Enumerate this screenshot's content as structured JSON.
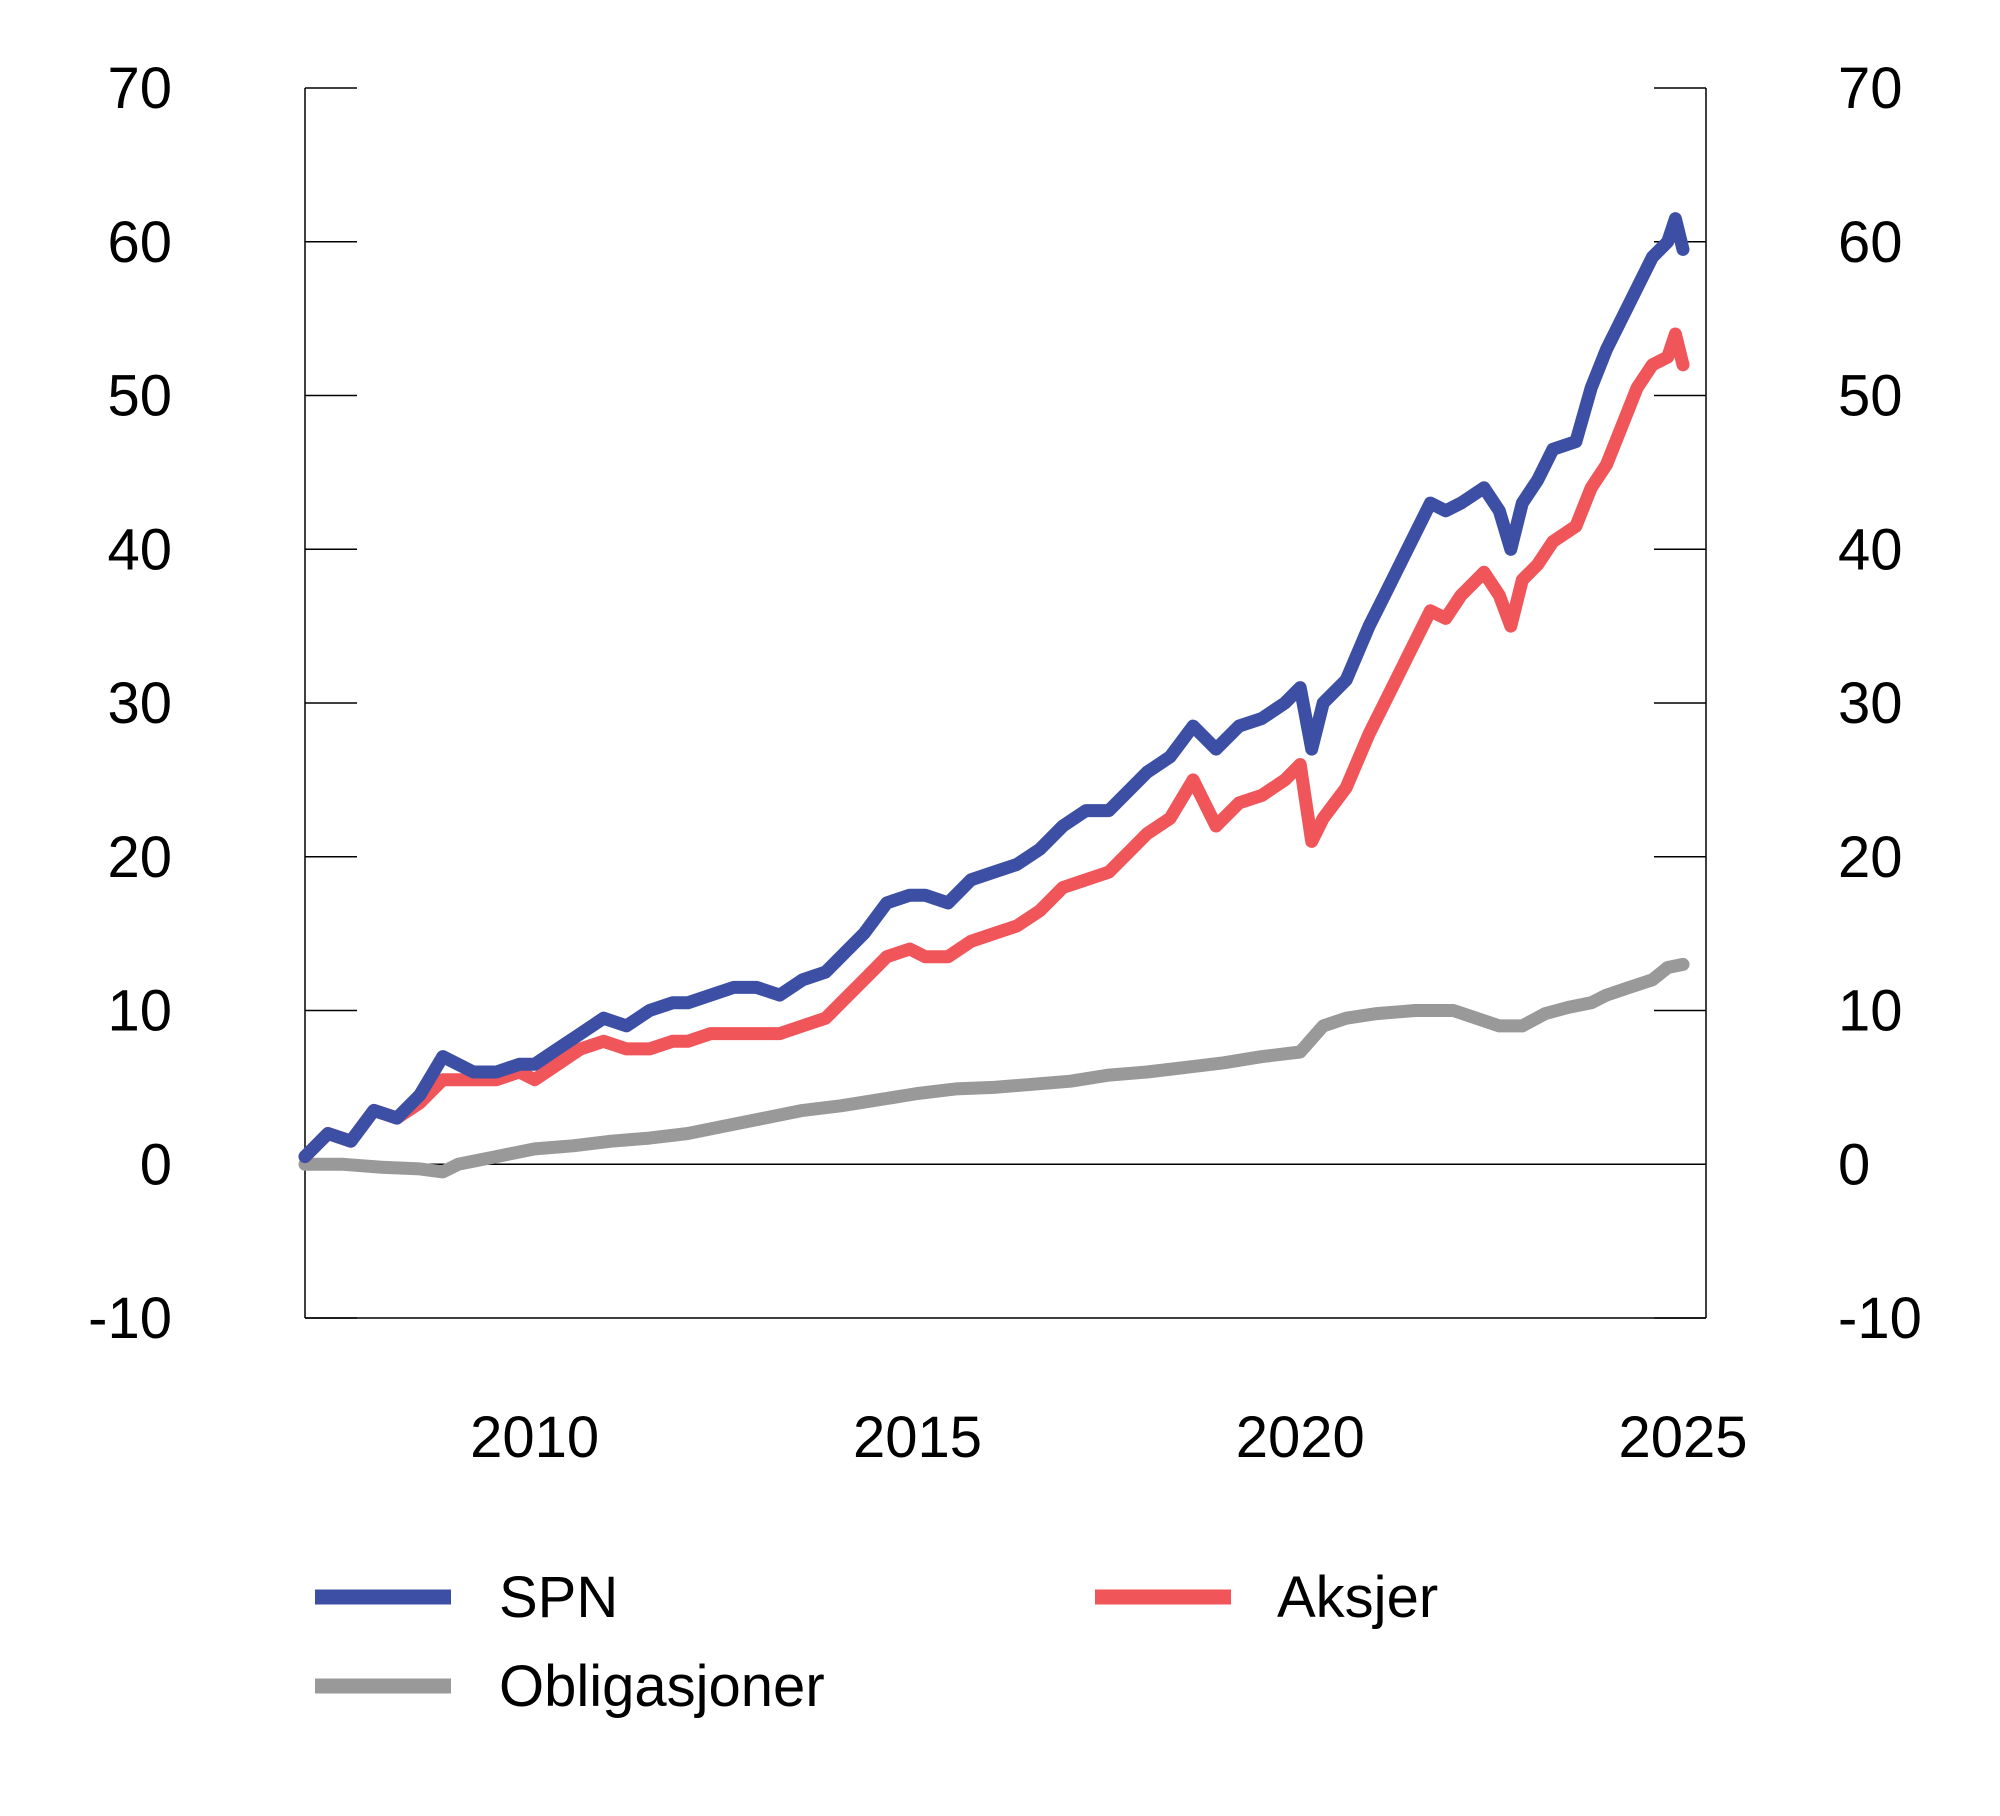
{
  "chart_data": {
    "type": "line",
    "title": "",
    "xlabel": "",
    "ylabel": "",
    "xlim": [
      2007.0,
      2025.3
    ],
    "ylim": [
      -10,
      70
    ],
    "x_ticks": [
      2010,
      2015,
      2020,
      2025
    ],
    "x_tick_labels": [
      "2010",
      "2015",
      "2020",
      "2025"
    ],
    "y_ticks": [
      -10,
      0,
      10,
      20,
      30,
      40,
      50,
      60,
      70
    ],
    "y_tick_labels": [
      "-10",
      "0",
      "10",
      "20",
      "30",
      "40",
      "50",
      "60",
      "70"
    ],
    "legend_position": "bottom",
    "grid": false,
    "series": [
      {
        "name": "SPN",
        "color": "#3c4fa4",
        "x": [
          2007.0,
          2007.3,
          2007.6,
          2007.9,
          2008.2,
          2008.5,
          2008.8,
          2009.0,
          2009.2,
          2009.5,
          2009.8,
          2010.0,
          2010.3,
          2010.6,
          2010.9,
          2011.2,
          2011.5,
          2011.8,
          2012.0,
          2012.3,
          2012.6,
          2012.9,
          2013.2,
          2013.5,
          2013.8,
          2014.0,
          2014.3,
          2014.6,
          2014.9,
          2015.1,
          2015.4,
          2015.7,
          2016.0,
          2016.3,
          2016.6,
          2016.9,
          2017.2,
          2017.5,
          2017.8,
          2018.0,
          2018.3,
          2018.6,
          2018.9,
          2019.2,
          2019.5,
          2019.8,
          2020.0,
          2020.15,
          2020.3,
          2020.6,
          2020.9,
          2021.1,
          2021.4,
          2021.7,
          2021.9,
          2022.1,
          2022.4,
          2022.6,
          2022.75,
          2022.9,
          2023.1,
          2023.3,
          2023.6,
          2023.8,
          2024.0,
          2024.2,
          2024.4,
          2024.6,
          2024.8,
          2024.9,
          2025.0
        ],
        "values": [
          0.5,
          2.0,
          1.5,
          3.5,
          3.0,
          4.5,
          7.0,
          6.5,
          6.0,
          6.0,
          6.5,
          6.5,
          7.5,
          8.5,
          9.5,
          9.0,
          10.0,
          10.5,
          10.5,
          11.0,
          11.5,
          11.5,
          11.0,
          12.0,
          12.5,
          13.5,
          15.0,
          17.0,
          17.5,
          17.5,
          17.0,
          18.5,
          19.0,
          19.5,
          20.5,
          22.0,
          23.0,
          23.0,
          24.5,
          25.5,
          26.5,
          28.5,
          27.0,
          28.5,
          29.0,
          30.0,
          31.0,
          27.0,
          30.0,
          31.5,
          35.0,
          37.0,
          40.0,
          43.0,
          42.5,
          43.0,
          44.0,
          42.5,
          40.0,
          43.0,
          44.5,
          46.5,
          47.0,
          50.5,
          53.0,
          55.0,
          57.0,
          59.0,
          60.0,
          61.5,
          59.5
        ]
      },
      {
        "name": "Aksjer",
        "color": "#f0555a",
        "x": [
          2007.0,
          2007.3,
          2007.6,
          2007.9,
          2008.2,
          2008.5,
          2008.8,
          2009.0,
          2009.2,
          2009.5,
          2009.8,
          2010.0,
          2010.3,
          2010.6,
          2010.9,
          2011.2,
          2011.5,
          2011.8,
          2012.0,
          2012.3,
          2012.6,
          2012.9,
          2013.2,
          2013.5,
          2013.8,
          2014.0,
          2014.3,
          2014.6,
          2014.9,
          2015.1,
          2015.4,
          2015.7,
          2016.0,
          2016.3,
          2016.6,
          2016.9,
          2017.2,
          2017.5,
          2017.8,
          2018.0,
          2018.3,
          2018.6,
          2018.9,
          2019.2,
          2019.5,
          2019.8,
          2020.0,
          2020.15,
          2020.3,
          2020.6,
          2020.9,
          2021.1,
          2021.4,
          2021.7,
          2021.9,
          2022.1,
          2022.4,
          2022.6,
          2022.75,
          2022.9,
          2023.1,
          2023.3,
          2023.6,
          2023.8,
          2024.0,
          2024.2,
          2024.4,
          2024.6,
          2024.8,
          2024.9,
          2025.0
        ],
        "values": [
          0.5,
          2.0,
          1.5,
          3.5,
          3.0,
          4.0,
          5.5,
          5.5,
          5.5,
          5.5,
          6.0,
          5.5,
          6.5,
          7.5,
          8.0,
          7.5,
          7.5,
          8.0,
          8.0,
          8.5,
          8.5,
          8.5,
          8.5,
          9.0,
          9.5,
          10.5,
          12.0,
          13.5,
          14.0,
          13.5,
          13.5,
          14.5,
          15.0,
          15.5,
          16.5,
          18.0,
          18.5,
          19.0,
          20.5,
          21.5,
          22.5,
          25.0,
          22.0,
          23.5,
          24.0,
          25.0,
          26.0,
          21.0,
          22.5,
          24.5,
          28.0,
          30.0,
          33.0,
          36.0,
          35.5,
          37.0,
          38.5,
          37.0,
          35.0,
          38.0,
          39.0,
          40.5,
          41.5,
          44.0,
          45.5,
          48.0,
          50.5,
          52.0,
          52.5,
          54.0,
          52.0
        ]
      },
      {
        "name": "Obligasjoner",
        "color": "#999999",
        "x": [
          2007.0,
          2007.5,
          2008.0,
          2008.5,
          2008.8,
          2009.0,
          2009.5,
          2010.0,
          2010.5,
          2011.0,
          2011.5,
          2012.0,
          2012.5,
          2013.0,
          2013.5,
          2014.0,
          2014.5,
          2015.0,
          2015.5,
          2016.0,
          2016.5,
          2017.0,
          2017.5,
          2018.0,
          2018.5,
          2019.0,
          2019.5,
          2020.0,
          2020.3,
          2020.6,
          2021.0,
          2021.5,
          2022.0,
          2022.3,
          2022.6,
          2022.9,
          2023.2,
          2023.5,
          2023.8,
          2024.0,
          2024.3,
          2024.6,
          2024.8,
          2025.0
        ],
        "values": [
          0.0,
          0.0,
          -0.2,
          -0.3,
          -0.5,
          0.0,
          0.5,
          1.0,
          1.2,
          1.5,
          1.7,
          2.0,
          2.5,
          3.0,
          3.5,
          3.8,
          4.2,
          4.6,
          4.9,
          5.0,
          5.2,
          5.4,
          5.8,
          6.0,
          6.3,
          6.6,
          7.0,
          7.3,
          9.0,
          9.5,
          9.8,
          10.0,
          10.0,
          9.5,
          9.0,
          9.0,
          9.8,
          10.2,
          10.5,
          11.0,
          11.5,
          12.0,
          12.8,
          13.0
        ]
      }
    ]
  }
}
